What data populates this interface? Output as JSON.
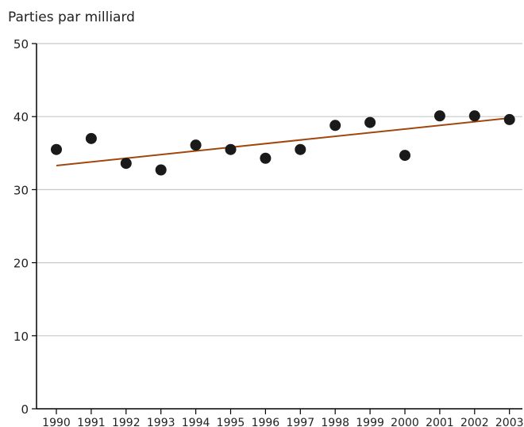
{
  "chart_data": {
    "type": "scatter",
    "title": "",
    "xlabel": "",
    "ylabel": "Parties par milliard",
    "x": [
      1990,
      1991,
      1992,
      1993,
      1994,
      1995,
      1996,
      1997,
      1998,
      1999,
      2000,
      2001,
      2002,
      2003
    ],
    "x_tick_labels": [
      "1990",
      "1991",
      "1992",
      "1993",
      "1994",
      "1995",
      "1996",
      "1997",
      "1998",
      "1999",
      "2000",
      "2001",
      "2002",
      "2003"
    ],
    "series": [
      {
        "values": [
          35.5,
          37.0,
          33.6,
          32.7,
          36.1,
          35.5,
          34.3,
          35.5,
          38.8,
          39.2,
          34.7,
          40.1,
          40.1,
          39.6
        ]
      }
    ],
    "trendline": {
      "start": {
        "x": 1990,
        "y": 33.3
      },
      "end": {
        "x": 2003,
        "y": 39.8
      }
    },
    "ylim": [
      0,
      50
    ],
    "y_ticks": [
      0,
      10,
      20,
      30,
      40,
      50
    ],
    "grid": true,
    "legend": "none",
    "colors": {
      "point": "#1a1a1a",
      "trendline": "#a0470d",
      "grid": "#c8c8c8",
      "axis": "#000000"
    }
  }
}
